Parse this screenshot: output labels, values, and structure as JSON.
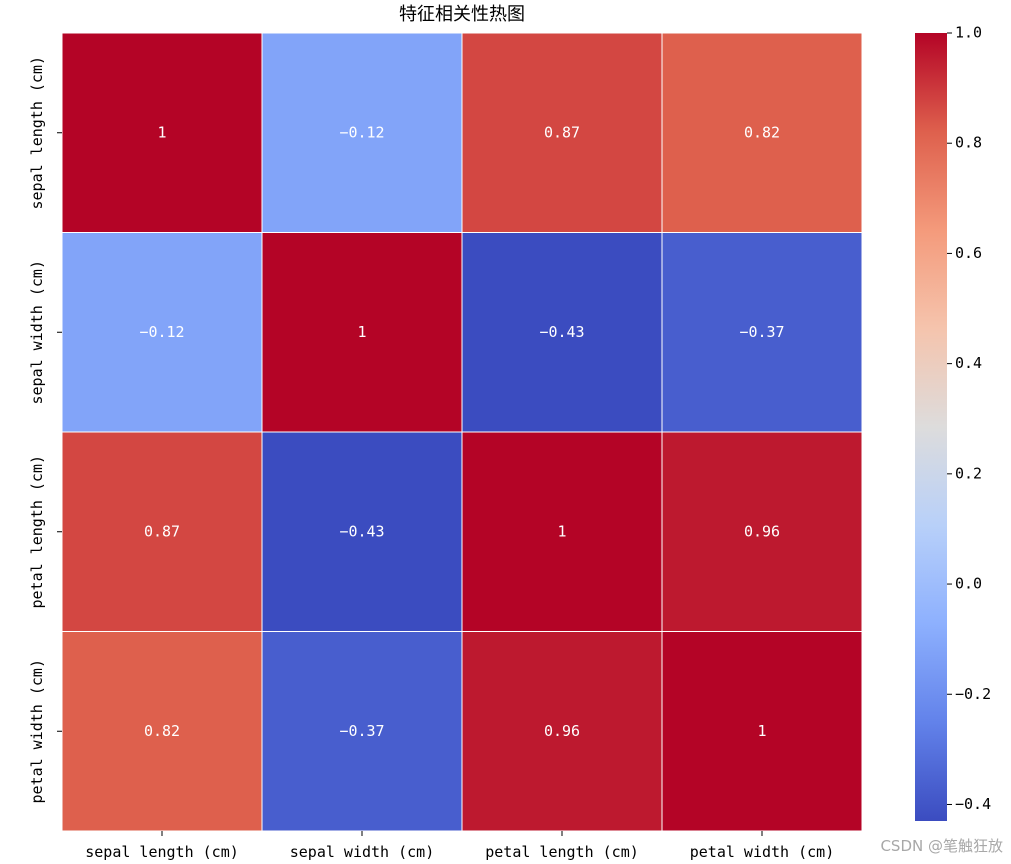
{
  "chart_data": {
    "type": "heatmap",
    "title": "特征相关性热图",
    "x_labels": [
      "sepal length (cm)",
      "sepal width (cm)",
      "petal length (cm)",
      "petal width (cm)"
    ],
    "y_labels": [
      "sepal length (cm)",
      "sepal width (cm)",
      "petal length (cm)",
      "petal width (cm)"
    ],
    "values": [
      [
        1.0,
        -0.12,
        0.87,
        0.82
      ],
      [
        -0.12,
        1.0,
        -0.43,
        -0.37
      ],
      [
        0.87,
        -0.43,
        1.0,
        0.96
      ],
      [
        0.82,
        -0.37,
        0.96,
        1.0
      ]
    ],
    "cell_labels": [
      [
        "1",
        "−0.12",
        "0.87",
        "0.82"
      ],
      [
        "−0.12",
        "1",
        "−0.43",
        "−0.37"
      ],
      [
        "0.87",
        "−0.43",
        "1",
        "0.96"
      ],
      [
        "0.82",
        "−0.37",
        "0.96",
        "1"
      ]
    ],
    "colormap": "coolwarm",
    "vmin": -0.43,
    "vmax": 1.0,
    "colorbar_ticks": [
      1.0,
      0.8,
      0.6,
      0.4,
      0.2,
      0.0,
      -0.2,
      -0.4
    ],
    "colorbar_tick_labels": [
      "1.0",
      "0.8",
      "0.6",
      "0.4",
      "0.2",
      "0.0",
      "−0.2",
      "−0.4"
    ],
    "cell_border_color": "#ffffff"
  },
  "watermark": "CSDN @笔触狂放"
}
